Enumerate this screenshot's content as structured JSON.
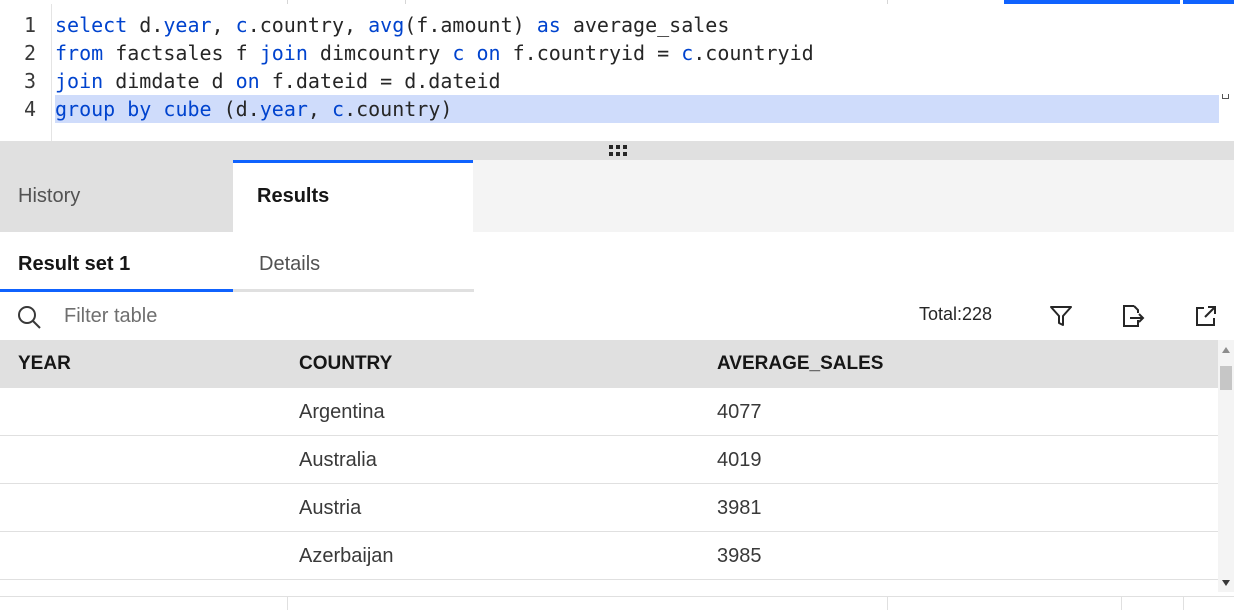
{
  "editor": {
    "lines": [
      {
        "number": "1",
        "tokens": [
          {
            "t": "select",
            "k": true
          },
          {
            "t": " d.",
            "k": false
          },
          {
            "t": "year",
            "k": true
          },
          {
            "t": ", ",
            "k": false
          },
          {
            "t": "c",
            "k": true
          },
          {
            "t": ".country, ",
            "k": false
          },
          {
            "t": "avg",
            "k": true
          },
          {
            "t": "(f.amount) ",
            "k": false
          },
          {
            "t": "as",
            "k": true
          },
          {
            "t": " average_sales",
            "k": false
          }
        ]
      },
      {
        "number": "2",
        "tokens": [
          {
            "t": "from",
            "k": true
          },
          {
            "t": " factsales f ",
            "k": false
          },
          {
            "t": "join",
            "k": true
          },
          {
            "t": " dimcountry ",
            "k": false
          },
          {
            "t": "c",
            "k": true
          },
          {
            "t": " ",
            "k": false
          },
          {
            "t": "on",
            "k": true
          },
          {
            "t": " f.countryid = ",
            "k": false
          },
          {
            "t": "c",
            "k": true
          },
          {
            "t": ".countryid",
            "k": false
          }
        ]
      },
      {
        "number": "3",
        "tokens": [
          {
            "t": "join",
            "k": true
          },
          {
            "t": " dimdate d ",
            "k": false
          },
          {
            "t": "on",
            "k": true
          },
          {
            "t": " f.dateid = d.dateid",
            "k": false
          }
        ]
      },
      {
        "number": "4",
        "selected": true,
        "tokens": [
          {
            "t": "group",
            "k": true
          },
          {
            "t": " ",
            "k": false
          },
          {
            "t": "by",
            "k": true
          },
          {
            "t": " ",
            "k": false
          },
          {
            "t": "cube",
            "k": true
          },
          {
            "t": " (d.",
            "k": false
          },
          {
            "t": "year",
            "k": true
          },
          {
            "t": ", ",
            "k": false
          },
          {
            "t": "c",
            "k": true
          },
          {
            "t": ".country)",
            "k": false
          }
        ]
      }
    ]
  },
  "tabs": {
    "history": "History",
    "results": "Results"
  },
  "subtabs": {
    "result_set": "Result set 1",
    "details": "Details"
  },
  "toolbar": {
    "filter_placeholder": "Filter table",
    "total": "Total:228",
    "icons": [
      "search-icon",
      "filter-icon",
      "export-icon",
      "open-external-icon"
    ]
  },
  "table": {
    "columns": [
      "YEAR",
      "COUNTRY",
      "AVERAGE_SALES"
    ],
    "rows": [
      [
        "",
        "Argentina",
        "4077"
      ],
      [
        "",
        "Australia",
        "4019"
      ],
      [
        "",
        "Austria",
        "3981"
      ],
      [
        "",
        "Azerbaijan",
        "3985"
      ]
    ]
  },
  "colors": {
    "accent": "#0f62fe",
    "keyword": "#0043ce",
    "selection": "#cfdcfb",
    "header_bg": "#e0e0e0"
  }
}
